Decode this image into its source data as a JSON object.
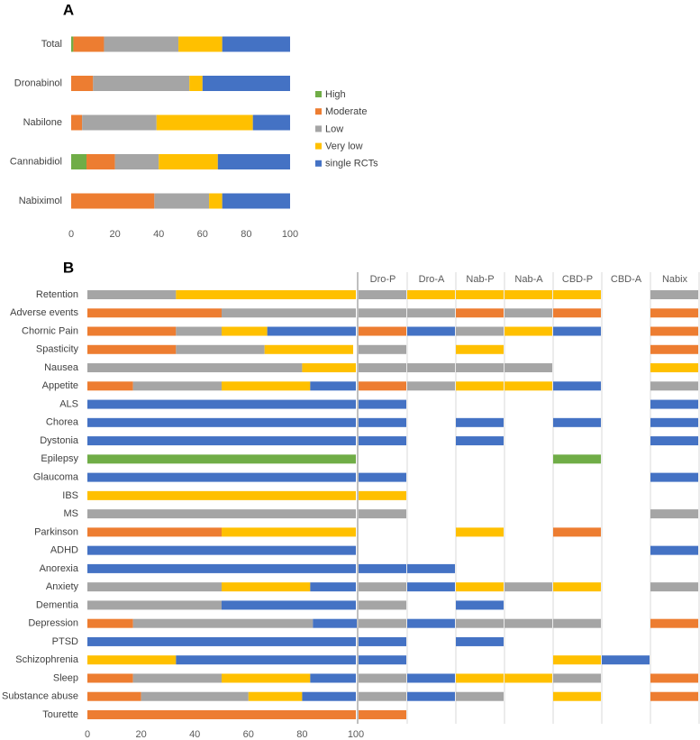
{
  "chart_data": [
    {
      "type": "stacked-bar",
      "panel": "A",
      "orientation": "horizontal",
      "legend": "right",
      "categories": [
        "Total",
        "Dronabinol",
        "Nabilone",
        "Cannabidiol",
        "Nabiximol"
      ],
      "series": [
        {
          "name": "High",
          "color": "#70ad47",
          "values": [
            1,
            0,
            0,
            7,
            0
          ]
        },
        {
          "name": "Moderate",
          "color": "#ed7d31",
          "values": [
            14,
            10,
            5,
            13,
            38
          ]
        },
        {
          "name": "Low",
          "color": "#a5a5a5",
          "values": [
            34,
            44,
            34,
            20,
            25
          ]
        },
        {
          "name": "Very low",
          "color": "#ffc000",
          "values": [
            20,
            6,
            44,
            27,
            6
          ]
        },
        {
          "name": "single RCTs",
          "color": "#4472c4",
          "values": [
            31,
            40,
            17,
            33,
            31
          ]
        }
      ],
      "xlim": [
        0,
        100
      ],
      "xticks": [
        0,
        20,
        40,
        60,
        80,
        100
      ]
    },
    {
      "type": "stacked-bar",
      "panel": "B",
      "orientation": "horizontal",
      "categories": [
        "Retention",
        "Adverse events",
        "Chornic Pain",
        "Spasticity",
        "Nausea",
        "Appetite",
        "ALS",
        "Chorea",
        "Dystonia",
        "Epilepsy",
        "Glaucoma",
        "IBS",
        "MS",
        "Parkinson",
        "ADHD",
        "Anorexia",
        "Anxiety",
        "Dementia",
        "Depression",
        "PTSD",
        "Schizophrenia",
        "Sleep",
        "Substance abuse",
        "Tourette"
      ],
      "series": [
        {
          "color": "#70ad47",
          "values": [
            0,
            0,
            0,
            0,
            0,
            0,
            0,
            0,
            0,
            100,
            0,
            0,
            0,
            0,
            0,
            0,
            0,
            0,
            0,
            0,
            0,
            0,
            0,
            0
          ]
        },
        {
          "color": "#ed7d31",
          "values": [
            0,
            50,
            33,
            33,
            0,
            17,
            0,
            0,
            0,
            0,
            0,
            0,
            0,
            50,
            0,
            0,
            0,
            0,
            17,
            0,
            0,
            17,
            20,
            100
          ]
        },
        {
          "color": "#a5a5a5",
          "values": [
            33,
            50,
            17,
            33,
            80,
            33,
            0,
            0,
            0,
            0,
            0,
            0,
            100,
            0,
            0,
            0,
            50,
            50,
            67,
            0,
            0,
            33,
            40,
            0
          ]
        },
        {
          "color": "#ffc000",
          "values": [
            67,
            0,
            17,
            33,
            20,
            33,
            0,
            0,
            0,
            0,
            0,
            100,
            0,
            50,
            0,
            0,
            33,
            0,
            0,
            0,
            33,
            33,
            20,
            0
          ]
        },
        {
          "color": "#4472c4",
          "values": [
            0,
            0,
            33,
            0,
            0,
            17,
            100,
            100,
            100,
            0,
            100,
            0,
            0,
            0,
            100,
            100,
            17,
            50,
            17,
            100,
            67,
            17,
            20,
            0
          ]
        }
      ],
      "xlim": [
        0,
        100
      ],
      "xticks": [
        0,
        20,
        40,
        60,
        80,
        100
      ],
      "matrix": {
        "columns": [
          "Dro-P",
          "Dro-A",
          "Nab-P",
          "Nab-A",
          "CBD-P",
          "CBD-A",
          "Nabix"
        ],
        "cells": [
          [
            "Low",
            "Very low",
            "Very low",
            "Very low",
            "Very low",
            null,
            "Low"
          ],
          [
            "Low",
            "Low",
            "Moderate",
            "Low",
            "Moderate",
            null,
            "Moderate"
          ],
          [
            "Moderate",
            "single RCTs",
            "Low",
            "Very low",
            "single RCTs",
            null,
            "Moderate"
          ],
          [
            "Low",
            null,
            "Very low",
            null,
            null,
            null,
            "Moderate"
          ],
          [
            "Low",
            "Low",
            "Low",
            "Low",
            null,
            null,
            "Very low"
          ],
          [
            "Moderate",
            "Low",
            "Very low",
            "Very low",
            "single RCTs",
            null,
            "Low"
          ],
          [
            "single RCTs",
            null,
            null,
            null,
            null,
            null,
            "single RCTs"
          ],
          [
            "single RCTs",
            null,
            "single RCTs",
            null,
            "single RCTs",
            null,
            "single RCTs"
          ],
          [
            "single RCTs",
            null,
            "single RCTs",
            null,
            null,
            null,
            "single RCTs"
          ],
          [
            null,
            null,
            null,
            null,
            "High",
            null,
            null
          ],
          [
            "single RCTs",
            null,
            null,
            null,
            null,
            null,
            "single RCTs"
          ],
          [
            "Very low",
            null,
            null,
            null,
            null,
            null,
            null
          ],
          [
            "Low",
            null,
            null,
            null,
            null,
            null,
            "Low"
          ],
          [
            null,
            null,
            "Very low",
            null,
            "Moderate",
            null,
            null
          ],
          [
            null,
            null,
            null,
            null,
            null,
            null,
            "single RCTs"
          ],
          [
            "single RCTs",
            "single RCTs",
            null,
            null,
            null,
            null,
            null
          ],
          [
            "Low",
            "single RCTs",
            "Very low",
            "Low",
            "Very low",
            null,
            "Low"
          ],
          [
            "Low",
            null,
            "single RCTs",
            null,
            null,
            null,
            null
          ],
          [
            "Low",
            "single RCTs",
            "Low",
            "Low",
            "Low",
            null,
            "Moderate"
          ],
          [
            "single RCTs",
            null,
            "single RCTs",
            null,
            null,
            null,
            null
          ],
          [
            "single RCTs",
            null,
            null,
            null,
            "Very low",
            "single RCTs",
            null
          ],
          [
            "Low",
            "single RCTs",
            "Very low",
            "Very low",
            "Low",
            null,
            "Moderate"
          ],
          [
            "Low",
            "single RCTs",
            "Low",
            null,
            "Very low",
            null,
            "Moderate"
          ],
          [
            "Moderate",
            null,
            null,
            null,
            null,
            null,
            null
          ]
        ]
      }
    }
  ]
}
